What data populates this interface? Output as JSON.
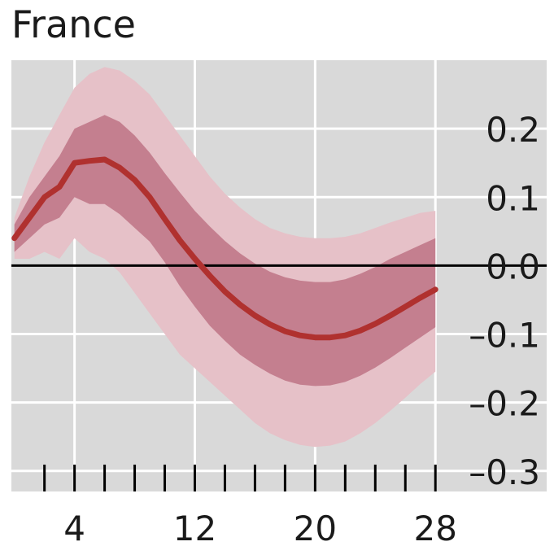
{
  "chart_data": {
    "type": "line",
    "title": "France",
    "xlabel": "",
    "ylabel": "",
    "x_ticks": [
      4,
      12,
      20,
      28
    ],
    "x_tick_labels": [
      "4",
      "12",
      "20",
      "28"
    ],
    "x_minor_ticks": [
      2,
      4,
      6,
      8,
      10,
      12,
      14,
      16,
      18,
      20,
      22,
      24,
      26,
      28
    ],
    "xlim": [
      -0.2,
      35.4
    ],
    "y_ticks": [
      0.2,
      0.1,
      0.0,
      -0.1,
      -0.2,
      -0.3
    ],
    "y_tick_labels": [
      "0.2",
      "0.1",
      "0.0",
      "–0.1",
      "–0.2",
      "–0.3"
    ],
    "ylim": [
      -0.33,
      0.3
    ],
    "y_axis_position": "right",
    "grid": true,
    "zero_line": 0.0,
    "colors": {
      "plot_background": "#d9d9d9",
      "grid": "#ffffff",
      "outer_band": "#e6c1c8",
      "inner_band": "#c47f8f",
      "line": "#b0312f",
      "zero_line": "#000000"
    },
    "series": [
      {
        "x": [
          0,
          1,
          2,
          3,
          4,
          5,
          6,
          7,
          8,
          9,
          10,
          11,
          12,
          13,
          14,
          15,
          16,
          17,
          18,
          19,
          20,
          21,
          22,
          23,
          24,
          25,
          26,
          27,
          28
        ],
        "values": [
          0.04,
          0.07,
          0.1,
          0.115,
          0.15,
          0.153,
          0.155,
          0.143,
          0.125,
          0.1,
          0.068,
          0.037,
          0.01,
          -0.015,
          -0.038,
          -0.057,
          -0.073,
          -0.086,
          -0.096,
          -0.102,
          -0.105,
          -0.105,
          -0.102,
          -0.095,
          -0.085,
          -0.073,
          -0.06,
          -0.047,
          -0.035
        ],
        "band_68_upper": [
          0.06,
          0.1,
          0.13,
          0.16,
          0.2,
          0.21,
          0.22,
          0.21,
          0.19,
          0.165,
          0.135,
          0.107,
          0.08,
          0.057,
          0.036,
          0.018,
          0.003,
          -0.009,
          -0.017,
          -0.022,
          -0.024,
          -0.024,
          -0.02,
          -0.012,
          -0.002,
          0.01,
          0.02,
          0.03,
          0.04
        ],
        "band_68_lower": [
          0.02,
          0.04,
          0.06,
          0.07,
          0.1,
          0.09,
          0.09,
          0.075,
          0.055,
          0.035,
          0.005,
          -0.03,
          -0.06,
          -0.088,
          -0.11,
          -0.13,
          -0.145,
          -0.158,
          -0.168,
          -0.174,
          -0.176,
          -0.175,
          -0.17,
          -0.161,
          -0.149,
          -0.135,
          -0.12,
          -0.105,
          -0.09
        ],
        "band_90_upper": [
          0.07,
          0.13,
          0.18,
          0.22,
          0.26,
          0.28,
          0.29,
          0.285,
          0.27,
          0.25,
          0.22,
          0.19,
          0.16,
          0.13,
          0.105,
          0.085,
          0.068,
          0.055,
          0.047,
          0.042,
          0.04,
          0.04,
          0.042,
          0.047,
          0.055,
          0.063,
          0.07,
          0.077,
          0.08
        ],
        "band_90_lower": [
          0.01,
          0.01,
          0.02,
          0.01,
          0.04,
          0.02,
          0.01,
          -0.01,
          -0.04,
          -0.07,
          -0.1,
          -0.13,
          -0.15,
          -0.17,
          -0.19,
          -0.21,
          -0.23,
          -0.245,
          -0.255,
          -0.262,
          -0.265,
          -0.263,
          -0.257,
          -0.245,
          -0.23,
          -0.212,
          -0.193,
          -0.173,
          -0.155
        ]
      }
    ]
  }
}
